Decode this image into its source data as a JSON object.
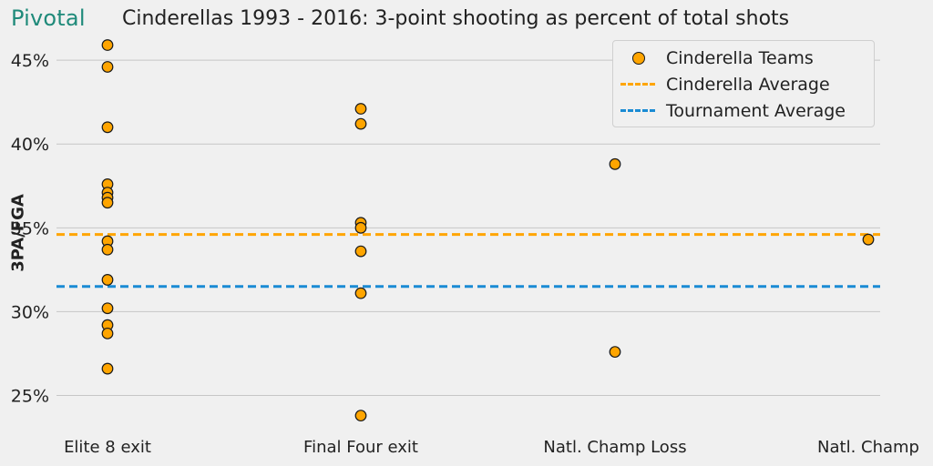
{
  "brand": "Pivotal",
  "colors": {
    "background": "#f0f0f0",
    "grid": "#c6c6c6",
    "cinderella_points": "#ffa500",
    "cinderella_average": "#ffa500",
    "tournament_average": "#1a8bd4"
  },
  "chart_data": {
    "type": "scatter",
    "title": "Cinderellas 1993 - 2016: 3-point shooting as percent of total shots",
    "ylabel": "3PA/FGA",
    "xlabel": "",
    "categories": [
      "Elite 8 exit",
      "Final Four exit",
      "Natl. Champ Loss",
      "Natl. Champ"
    ],
    "ylim": [
      23.4,
      46.2
    ],
    "yticks": [
      25,
      30,
      35,
      40,
      45
    ],
    "ytick_labels": [
      "25%",
      "30%",
      "35%",
      "40%",
      "45%"
    ],
    "grid": "horizontal",
    "legend_position": "top-right",
    "series": [
      {
        "name": "Cinderella Teams",
        "kind": "points",
        "points": [
          {
            "category": "Elite 8 exit",
            "y": 45.9
          },
          {
            "category": "Elite 8 exit",
            "y": 44.6
          },
          {
            "category": "Elite 8 exit",
            "y": 41.0
          },
          {
            "category": "Elite 8 exit",
            "y": 37.6
          },
          {
            "category": "Elite 8 exit",
            "y": 37.1
          },
          {
            "category": "Elite 8 exit",
            "y": 36.8
          },
          {
            "category": "Elite 8 exit",
            "y": 36.5
          },
          {
            "category": "Elite 8 exit",
            "y": 34.2
          },
          {
            "category": "Elite 8 exit",
            "y": 33.7
          },
          {
            "category": "Elite 8 exit",
            "y": 31.9
          },
          {
            "category": "Elite 8 exit",
            "y": 30.2
          },
          {
            "category": "Elite 8 exit",
            "y": 29.2
          },
          {
            "category": "Elite 8 exit",
            "y": 28.7
          },
          {
            "category": "Elite 8 exit",
            "y": 26.6
          },
          {
            "category": "Final Four exit",
            "y": 42.1
          },
          {
            "category": "Final Four exit",
            "y": 41.2
          },
          {
            "category": "Final Four exit",
            "y": 35.3
          },
          {
            "category": "Final Four exit",
            "y": 35.0
          },
          {
            "category": "Final Four exit",
            "y": 33.6
          },
          {
            "category": "Final Four exit",
            "y": 31.1
          },
          {
            "category": "Final Four exit",
            "y": 23.8
          },
          {
            "category": "Natl. Champ Loss",
            "y": 38.8
          },
          {
            "category": "Natl. Champ Loss",
            "y": 27.6
          },
          {
            "category": "Natl. Champ",
            "y": 34.3
          }
        ]
      },
      {
        "name": "Cinderella Average",
        "kind": "hline",
        "y": 34.6
      },
      {
        "name": "Tournament Average",
        "kind": "hline",
        "y": 31.5
      }
    ]
  }
}
